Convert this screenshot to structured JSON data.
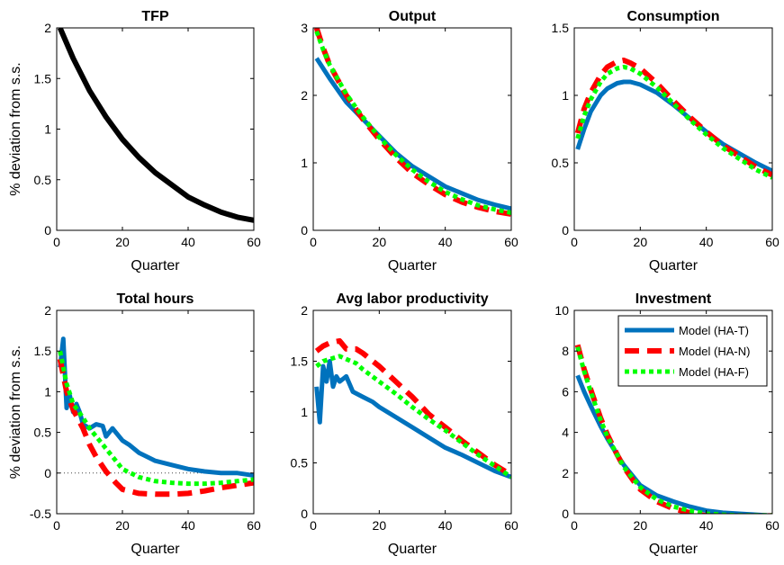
{
  "colors": {
    "ha_t": "#0072BD",
    "ha_n": "#FF0000",
    "ha_f": "#00FF00",
    "tfp": "#000000",
    "zero_line": "#444444"
  },
  "chart_data": [
    {
      "type": "line",
      "title": "TFP",
      "xlabel": "Quarter",
      "ylabel": "% deviation from s.s.",
      "xlim": [
        0,
        60
      ],
      "ylim": [
        0,
        2
      ],
      "xticks": [
        0,
        20,
        40,
        60
      ],
      "yticks": [
        0,
        0.5,
        1,
        1.5,
        2
      ],
      "xtick_labels": [
        "0",
        "20",
        "40",
        "60"
      ],
      "ytick_labels": [
        "0",
        "0.5",
        "1",
        "1.5",
        "2"
      ],
      "grid": false,
      "zero_line": true,
      "series": [
        {
          "key": "tfp",
          "x": [
            1,
            5,
            10,
            15,
            20,
            25,
            30,
            35,
            40,
            45,
            50,
            55,
            60
          ],
          "y": [
            2.0,
            1.7,
            1.38,
            1.12,
            0.9,
            0.72,
            0.57,
            0.45,
            0.33,
            0.25,
            0.18,
            0.13,
            0.1
          ]
        }
      ]
    },
    {
      "type": "line",
      "title": "Output",
      "xlabel": "Quarter",
      "ylabel": "",
      "xlim": [
        0,
        60
      ],
      "ylim": [
        0,
        3
      ],
      "xticks": [
        0,
        20,
        40,
        60
      ],
      "yticks": [
        0,
        1,
        2,
        3
      ],
      "xtick_labels": [
        "0",
        "20",
        "40",
        "60"
      ],
      "ytick_labels": [
        "0",
        "1",
        "2",
        "3"
      ],
      "grid": false,
      "zero_line": true,
      "series": [
        {
          "key": "ha_t",
          "x": [
            1,
            3,
            5,
            10,
            15,
            20,
            25,
            30,
            35,
            40,
            45,
            50,
            55,
            60
          ],
          "y": [
            2.55,
            2.4,
            2.25,
            1.9,
            1.65,
            1.4,
            1.15,
            0.95,
            0.8,
            0.65,
            0.55,
            0.45,
            0.38,
            0.32
          ]
        },
        {
          "key": "ha_n",
          "x": [
            1,
            3,
            5,
            10,
            15,
            20,
            25,
            30,
            35,
            40,
            45,
            50,
            55,
            60
          ],
          "y": [
            3.0,
            2.7,
            2.45,
            2.0,
            1.65,
            1.35,
            1.08,
            0.85,
            0.68,
            0.53,
            0.42,
            0.34,
            0.28,
            0.24
          ]
        },
        {
          "key": "ha_f",
          "x": [
            1,
            3,
            5,
            10,
            15,
            20,
            25,
            30,
            35,
            40,
            45,
            50,
            55,
            60
          ],
          "y": [
            2.95,
            2.68,
            2.45,
            2.02,
            1.68,
            1.38,
            1.12,
            0.9,
            0.72,
            0.57,
            0.46,
            0.37,
            0.31,
            0.26
          ]
        }
      ]
    },
    {
      "type": "line",
      "title": "Consumption",
      "xlabel": "Quarter",
      "ylabel": "",
      "xlim": [
        0,
        60
      ],
      "ylim": [
        0,
        1.5
      ],
      "xticks": [
        0,
        20,
        40,
        60
      ],
      "yticks": [
        0,
        0.5,
        1,
        1.5
      ],
      "xtick_labels": [
        "0",
        "20",
        "40",
        "60"
      ],
      "ytick_labels": [
        "0",
        "0.5",
        "1",
        "1.5"
      ],
      "grid": false,
      "zero_line": true,
      "series": [
        {
          "key": "ha_t",
          "x": [
            1,
            3,
            5,
            8,
            10,
            13,
            15,
            17,
            20,
            25,
            30,
            35,
            40,
            45,
            50,
            55,
            60
          ],
          "y": [
            0.6,
            0.75,
            0.88,
            1.0,
            1.05,
            1.09,
            1.1,
            1.1,
            1.08,
            1.02,
            0.93,
            0.83,
            0.73,
            0.64,
            0.57,
            0.5,
            0.44
          ]
        },
        {
          "key": "ha_n",
          "x": [
            1,
            3,
            5,
            8,
            10,
            13,
            15,
            17,
            20,
            25,
            30,
            35,
            40,
            45,
            50,
            55,
            60
          ],
          "y": [
            0.72,
            0.9,
            1.02,
            1.15,
            1.21,
            1.25,
            1.26,
            1.24,
            1.2,
            1.09,
            0.96,
            0.84,
            0.73,
            0.63,
            0.55,
            0.47,
            0.41
          ]
        },
        {
          "key": "ha_f",
          "x": [
            1,
            3,
            5,
            8,
            10,
            13,
            15,
            17,
            20,
            25,
            30,
            35,
            40,
            45,
            50,
            55,
            60
          ],
          "y": [
            0.68,
            0.85,
            0.97,
            1.1,
            1.16,
            1.2,
            1.21,
            1.2,
            1.16,
            1.06,
            0.94,
            0.82,
            0.71,
            0.61,
            0.53,
            0.45,
            0.39
          ]
        }
      ]
    },
    {
      "type": "line",
      "title": "Total hours",
      "xlabel": "Quarter",
      "ylabel": "% deviation from s.s.",
      "xlim": [
        0,
        60
      ],
      "ylim": [
        -0.5,
        2
      ],
      "xticks": [
        0,
        20,
        40,
        60
      ],
      "yticks": [
        -0.5,
        0,
        0.5,
        1,
        1.5,
        2
      ],
      "xtick_labels": [
        "0",
        "20",
        "40",
        "60"
      ],
      "ytick_labels": [
        "-0.5",
        "0",
        "0.5",
        "1",
        "1.5",
        "2"
      ],
      "grid": false,
      "zero_line": true,
      "series": [
        {
          "key": "ha_t",
          "x": [
            1,
            2,
            3,
            4,
            5,
            6,
            7,
            8,
            10,
            12,
            14,
            15,
            17,
            20,
            22,
            25,
            30,
            35,
            40,
            45,
            50,
            55,
            60
          ],
          "y": [
            1.3,
            1.65,
            0.8,
            0.95,
            0.75,
            0.85,
            0.75,
            0.6,
            0.55,
            0.6,
            0.58,
            0.45,
            0.55,
            0.4,
            0.35,
            0.25,
            0.15,
            0.1,
            0.05,
            0.02,
            0.0,
            0.0,
            -0.03
          ]
        },
        {
          "key": "ha_n",
          "x": [
            1,
            3,
            5,
            8,
            10,
            12,
            15,
            18,
            20,
            25,
            30,
            35,
            40,
            45,
            50,
            55,
            60
          ],
          "y": [
            1.4,
            1.0,
            0.78,
            0.55,
            0.35,
            0.2,
            0.02,
            -0.12,
            -0.2,
            -0.25,
            -0.26,
            -0.26,
            -0.25,
            -0.22,
            -0.18,
            -0.15,
            -0.12
          ]
        },
        {
          "key": "ha_f",
          "x": [
            1,
            3,
            5,
            8,
            10,
            12,
            15,
            18,
            20,
            25,
            30,
            35,
            40,
            45,
            50,
            55,
            60
          ],
          "y": [
            1.5,
            1.1,
            0.85,
            0.68,
            0.55,
            0.45,
            0.3,
            0.15,
            0.05,
            -0.05,
            -0.1,
            -0.12,
            -0.13,
            -0.13,
            -0.12,
            -0.1,
            -0.08
          ]
        }
      ]
    },
    {
      "type": "line",
      "title": "Avg labor productivity",
      "xlabel": "Quarter",
      "ylabel": "",
      "xlim": [
        0,
        60
      ],
      "ylim": [
        0,
        2
      ],
      "xticks": [
        0,
        20,
        40,
        60
      ],
      "yticks": [
        0,
        0.5,
        1,
        1.5,
        2
      ],
      "xtick_labels": [
        "0",
        "20",
        "40",
        "60"
      ],
      "ytick_labels": [
        "0",
        "0.5",
        "1",
        "1.5",
        "2"
      ],
      "grid": false,
      "zero_line": true,
      "series": [
        {
          "key": "ha_t",
          "x": [
            1,
            2,
            3,
            4,
            5,
            6,
            7,
            8,
            10,
            12,
            15,
            18,
            20,
            25,
            30,
            35,
            40,
            45,
            50,
            55,
            60
          ],
          "y": [
            1.25,
            0.9,
            1.45,
            1.3,
            1.5,
            1.25,
            1.35,
            1.3,
            1.35,
            1.2,
            1.15,
            1.1,
            1.05,
            0.95,
            0.85,
            0.75,
            0.65,
            0.58,
            0.5,
            0.42,
            0.36
          ]
        },
        {
          "key": "ha_n",
          "x": [
            1,
            3,
            5,
            8,
            10,
            13,
            15,
            20,
            25,
            30,
            35,
            40,
            45,
            50,
            55,
            60
          ],
          "y": [
            1.6,
            1.65,
            1.68,
            1.7,
            1.62,
            1.62,
            1.58,
            1.45,
            1.3,
            1.15,
            0.98,
            0.85,
            0.72,
            0.6,
            0.48,
            0.38
          ]
        },
        {
          "key": "ha_f",
          "x": [
            1,
            3,
            5,
            8,
            10,
            13,
            15,
            20,
            25,
            30,
            35,
            40,
            45,
            50,
            55,
            60
          ],
          "y": [
            1.45,
            1.5,
            1.52,
            1.55,
            1.52,
            1.48,
            1.42,
            1.3,
            1.18,
            1.05,
            0.93,
            0.82,
            0.7,
            0.58,
            0.47,
            0.36
          ]
        }
      ]
    },
    {
      "type": "line",
      "title": "Investment",
      "xlabel": "Quarter",
      "ylabel": "",
      "xlim": [
        0,
        60
      ],
      "ylim": [
        0,
        10
      ],
      "xticks": [
        0,
        20,
        40,
        60
      ],
      "yticks": [
        0,
        2,
        4,
        6,
        8,
        10
      ],
      "xtick_labels": [
        "0",
        "20",
        "40",
        "60"
      ],
      "ytick_labels": [
        "0",
        "2",
        "4",
        "6",
        "8",
        "10"
      ],
      "grid": false,
      "zero_line": true,
      "legend": {
        "placement": "top-right"
      },
      "series": [
        {
          "key": "ha_t",
          "name": "Model (HA-T)",
          "x": [
            1,
            3,
            5,
            8,
            10,
            13,
            15,
            18,
            20,
            25,
            30,
            35,
            40,
            45,
            50,
            55,
            60
          ],
          "y": [
            6.8,
            6.0,
            5.3,
            4.3,
            3.7,
            2.9,
            2.4,
            1.8,
            1.4,
            0.9,
            0.6,
            0.35,
            0.15,
            0.05,
            0.0,
            -0.05,
            -0.1
          ]
        },
        {
          "key": "ha_n",
          "name": "Model (HA-N)",
          "x": [
            1,
            3,
            5,
            8,
            10,
            13,
            15,
            18,
            20,
            25,
            30,
            35,
            40,
            45,
            50,
            55,
            60
          ],
          "y": [
            8.3,
            7.1,
            6.1,
            4.7,
            3.9,
            2.9,
            2.3,
            1.6,
            1.2,
            0.6,
            0.25,
            0.05,
            -0.1,
            -0.15,
            -0.15,
            -0.12,
            -0.1
          ]
        },
        {
          "key": "ha_f",
          "name": "Model (HA-F)",
          "x": [
            1,
            3,
            5,
            8,
            10,
            13,
            15,
            18,
            20,
            25,
            30,
            35,
            40,
            45,
            50,
            55,
            60
          ],
          "y": [
            8.2,
            7.0,
            6.0,
            4.6,
            3.8,
            2.9,
            2.3,
            1.7,
            1.3,
            0.7,
            0.35,
            0.15,
            0.0,
            -0.05,
            -0.08,
            -0.08,
            -0.08
          ]
        }
      ]
    }
  ]
}
